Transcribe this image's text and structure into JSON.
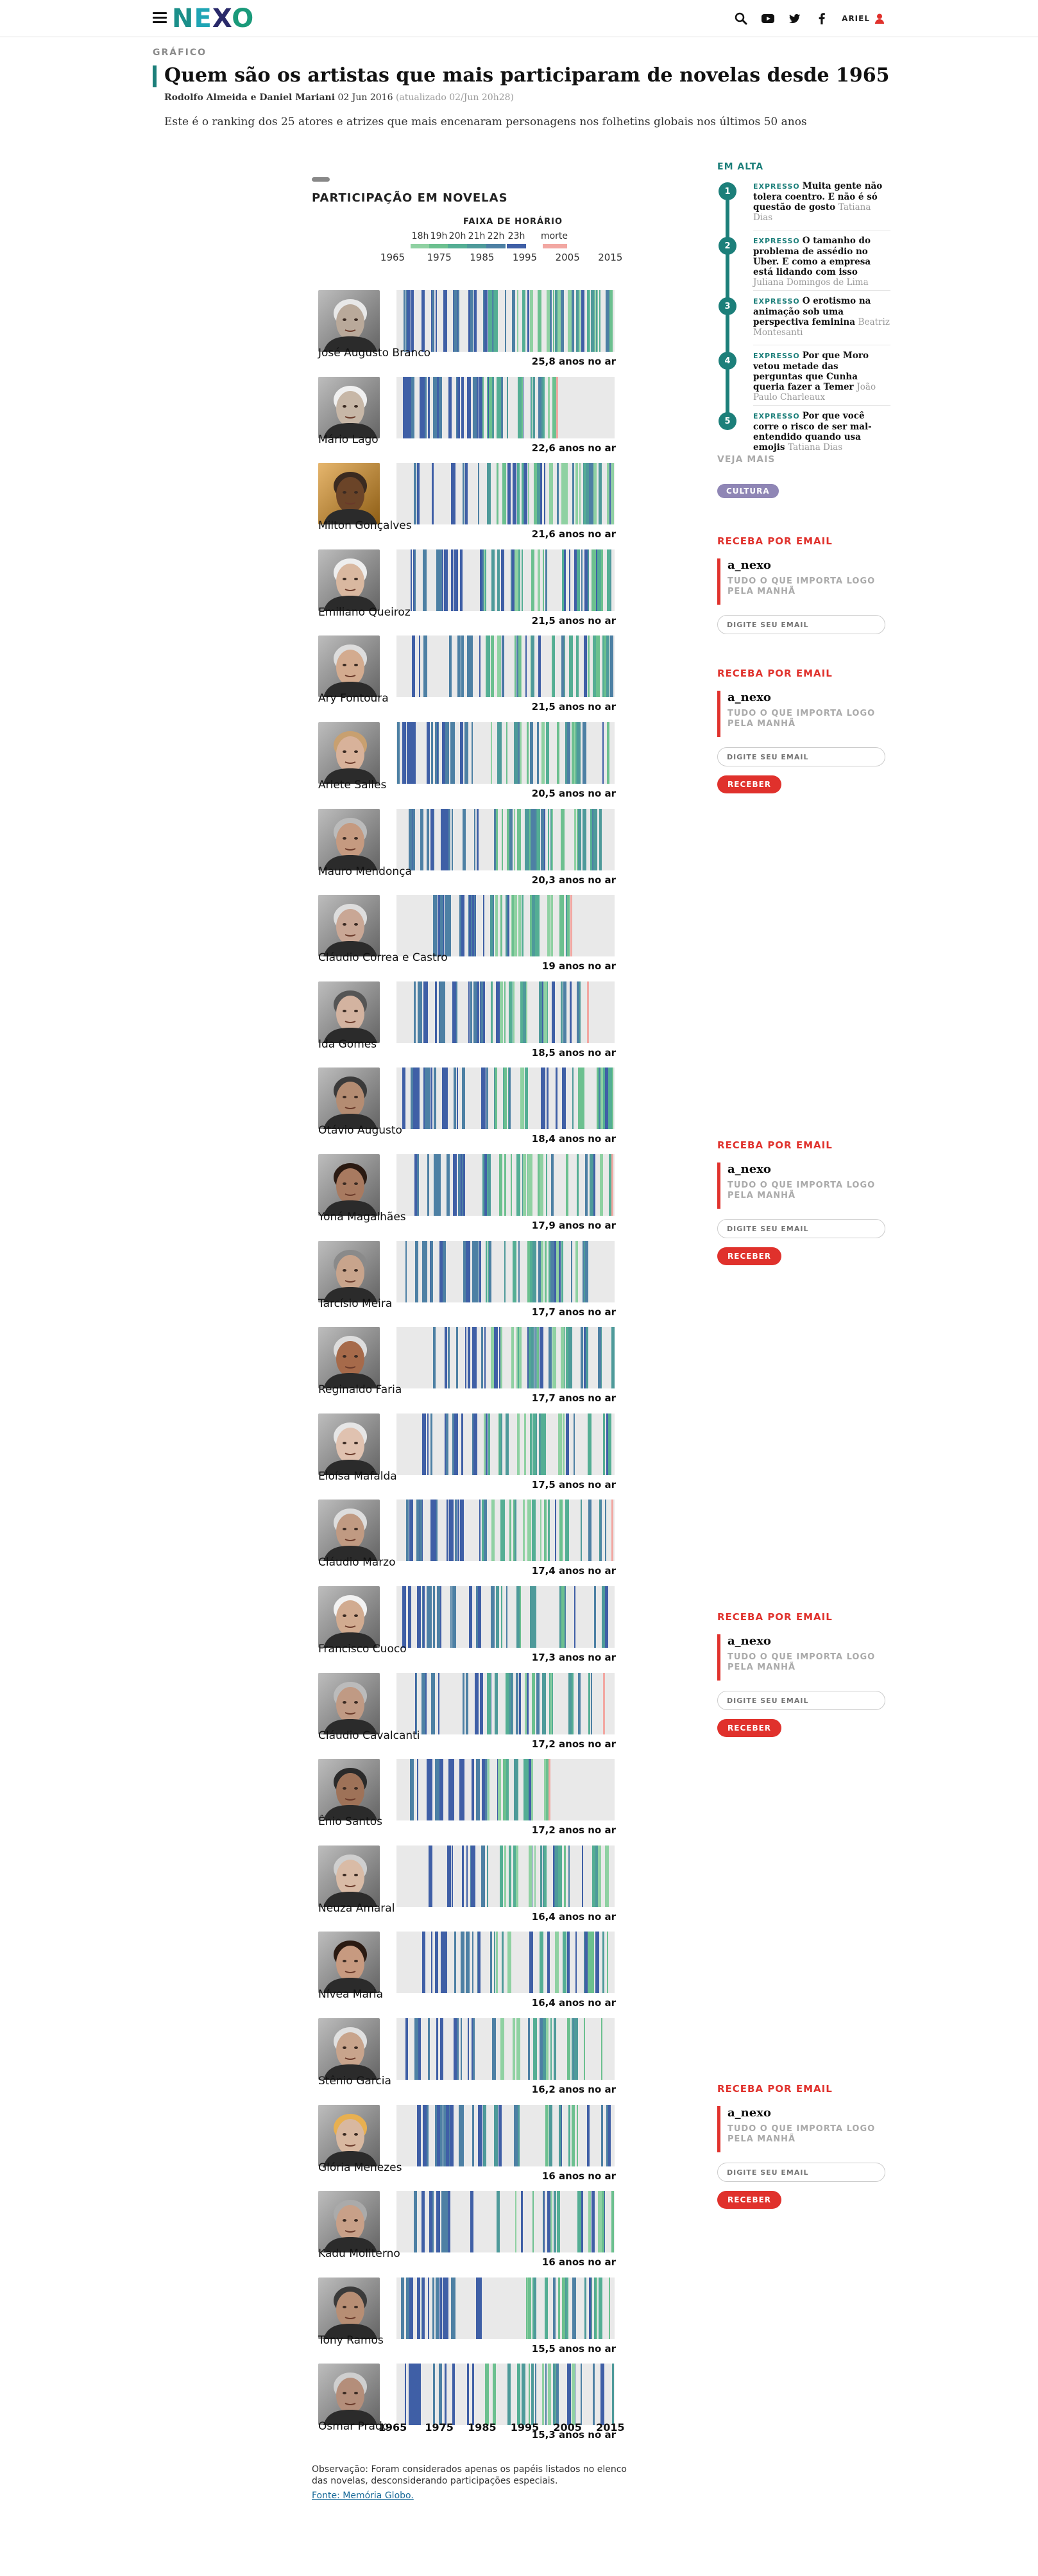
{
  "header": {
    "logo": [
      "N",
      "E",
      "X",
      "O"
    ],
    "user_label": "ARIEL",
    "icons": [
      "menu-icon",
      "search-icon",
      "youtube-icon",
      "twitter-icon",
      "facebook-icon",
      "user-icon"
    ]
  },
  "article": {
    "section": "GRÁFICO",
    "title": "Quem são os artistas que mais participaram de novelas desde 1965",
    "authors": "Rodolfo Almeida e Daniel Mariani",
    "date": "02 Jun 2016",
    "updated": "(atualizado 02/Jun 20h28)",
    "lead": "Este é o ranking dos 25 atores e atrizes que mais encenaram personagens nos folhetins globais nos últimos 50 anos"
  },
  "chart_data": {
    "type": "timeline-strip",
    "title": "PARTICIPAÇÃO EM NOVELAS",
    "legend_title": "FAIXA DE HORÁRIO",
    "legend": [
      {
        "label": "18h",
        "color": "#8fd1a2"
      },
      {
        "label": "19h",
        "color": "#6cc08f"
      },
      {
        "label": "20h",
        "color": "#54ae94"
      },
      {
        "label": "21h",
        "color": "#4e9a9a"
      },
      {
        "label": "22h",
        "color": "#4d80a4"
      },
      {
        "label": "23h",
        "color": "#3f5fa6"
      },
      {
        "label": "morte",
        "color": "#f2a7a2"
      }
    ],
    "x_ticks": [
      "1965",
      "1975",
      "1985",
      "1995",
      "2005",
      "2015"
    ],
    "xlim": [
      1965,
      2016
    ],
    "unit": "anos no ar",
    "actors": [
      {
        "name": "José Augusto Branco",
        "years_label": "25,8 anos no ar",
        "value": 25.8,
        "skin": "#b9a99a",
        "hair": "#e8e8e8"
      },
      {
        "name": "Mário Lago",
        "years_label": "22,6 anos no ar",
        "value": 22.6,
        "skin": "#c7b7a7",
        "hair": "#f0f0f0",
        "death": 2002.4
      },
      {
        "name": "Milton Gonçalves",
        "years_label": "21,6 anos no ar",
        "value": 21.6,
        "skin": "#6b4428",
        "hair": "#3a2a20",
        "bg": "#d98f1f"
      },
      {
        "name": "Emiliano Queiroz",
        "years_label": "21,5 anos no ar",
        "value": 21.5,
        "skin": "#d9b8a0",
        "hair": "#eeeeee"
      },
      {
        "name": "Ary Fontoura",
        "years_label": "21,5 anos no ar",
        "value": 21.5,
        "skin": "#d3ab8f",
        "hair": "#dddddd"
      },
      {
        "name": "Arlete Salles",
        "years_label": "20,5 anos no ar",
        "value": 20.5,
        "skin": "#d8b29a",
        "hair": "#c8a070"
      },
      {
        "name": "Mauro Mendonça",
        "years_label": "20,3 anos no ar",
        "value": 20.3,
        "skin": "#c59a80",
        "hair": "#bbbbbb"
      },
      {
        "name": "Cláudio Correa e Castro",
        "years_label": "19 anos no ar",
        "value": 19.0,
        "skin": "#c9a795",
        "hair": "#dddddd",
        "death": 2005.6
      },
      {
        "name": "Ida Gomes",
        "years_label": "18,5 anos no ar",
        "value": 18.5,
        "skin": "#d3b3a0",
        "hair": "#555555",
        "death": 2009.5
      },
      {
        "name": "Otávio Augusto",
        "years_label": "18,4 anos no ar",
        "value": 18.4,
        "skin": "#b48c72",
        "hair": "#3a3a3a"
      },
      {
        "name": "Yoná Magalhães",
        "years_label": "17,9 anos no ar",
        "value": 17.9,
        "skin": "#a87a60",
        "hair": "#2a1a12",
        "death": 2015.3
      },
      {
        "name": "Tarcísio Meira",
        "years_label": "17,7 anos no ar",
        "value": 17.7,
        "skin": "#c8a48c",
        "hair": "#8a8a8a"
      },
      {
        "name": "Reginaldo Faria",
        "years_label": "17,7 anos no ar",
        "value": 17.7,
        "skin": "#a66a4a",
        "hair": "#dddddd"
      },
      {
        "name": "Eloísa Mafalda",
        "years_label": "17,5 anos no ar",
        "value": 17.5,
        "skin": "#e0c2b0",
        "hair": "#e6e6e6"
      },
      {
        "name": "Cláudio Marzo",
        "years_label": "17,4 anos no ar",
        "value": 17.4,
        "skin": "#c09a82",
        "hair": "#dddddd",
        "death": 2015.2
      },
      {
        "name": "Francisco Cuoco",
        "years_label": "17,3 anos no ar",
        "value": 17.3,
        "skin": "#d1ab90",
        "hair": "#f2f2f2"
      },
      {
        "name": "Cláudio Cavalcanti",
        "years_label": "17,2 anos no ar",
        "value": 17.2,
        "skin": "#c09a84",
        "hair": "#bbbbbb",
        "death": 2013.3
      },
      {
        "name": "Ênio Santos",
        "years_label": "17,2 anos no ar",
        "value": 17.2,
        "skin": "#9e7258",
        "hair": "#2a2a2a",
        "death": 2000.6
      },
      {
        "name": "Neuza Amaral",
        "years_label": "16,4 anos no ar",
        "value": 16.4,
        "skin": "#d9bba6",
        "hair": "#cfcfcf"
      },
      {
        "name": "Nívea Maria",
        "years_label": "16,4 anos no ar",
        "value": 16.4,
        "skin": "#c79a80",
        "hair": "#2a1a12"
      },
      {
        "name": "Stênio Garcia",
        "years_label": "16,2 anos no ar",
        "value": 16.2,
        "skin": "#c8a48c",
        "hair": "#e0e0e0"
      },
      {
        "name": "Glória Menezes",
        "years_label": "16 anos no ar",
        "value": 16.0,
        "skin": "#d8b8a0",
        "hair": "#e8b050"
      },
      {
        "name": "Kadu Moliterno",
        "years_label": "16 anos no ar",
        "value": 16.0,
        "skin": "#c8a088",
        "hair": "#aaaaaa"
      },
      {
        "name": "Tony Ramos",
        "years_label": "15,5 anos no ar",
        "value": 15.5,
        "skin": "#b78e74",
        "hair": "#3a3a3a"
      },
      {
        "name": "Osmar Prado",
        "years_label": "15,3 anos no ar",
        "value": 15.3,
        "skin": "#b48e7a",
        "hair": "#cfcfcf"
      }
    ]
  },
  "chart_note": "Observação: Foram considerados apenas os papéis listados no elenco das novelas, desconsiderando participações especiais.",
  "chart_source": "Fonte: Memória Globo.",
  "sidebar": {
    "em_alta_title": "EM ALTA",
    "trending": [
      {
        "num": "1",
        "tag": "EXPRESSO",
        "headline": "Muita gente não tolera coentro. E não é só questão de gosto",
        "author": "Tatiana Dias"
      },
      {
        "num": "2",
        "tag": "EXPRESSO",
        "headline": "O tamanho do problema de assédio no Uber. E como a empresa está lidando com isso",
        "author": "Juliana Domingos de Lima"
      },
      {
        "num": "3",
        "tag": "EXPRESSO",
        "headline": "O erotismo na animação sob uma perspectiva feminina",
        "author": "Beatriz Montesanti"
      },
      {
        "num": "4",
        "tag": "EXPRESSO",
        "headline": "Por que Moro vetou metade das perguntas que Cunha queria fazer a Temer",
        "author": "João Paulo Charleaux"
      },
      {
        "num": "5",
        "tag": "EXPRESSO",
        "headline": "Por que você corre o risco de ser mal-entendido quando usa emojis",
        "author": "Tatiana Dias"
      }
    ],
    "veja_mais_title": "VEJA MAIS",
    "veja_mais_tag": "CULTURA",
    "newsletter": {
      "title": "RECEBA POR EMAIL",
      "brand": "a_nexo",
      "tagline": "TUDO O QUE IMPORTA LOGO PELA MANHÃ",
      "placeholder": "DIGITE SEU EMAIL",
      "button": "RECEBER"
    }
  }
}
